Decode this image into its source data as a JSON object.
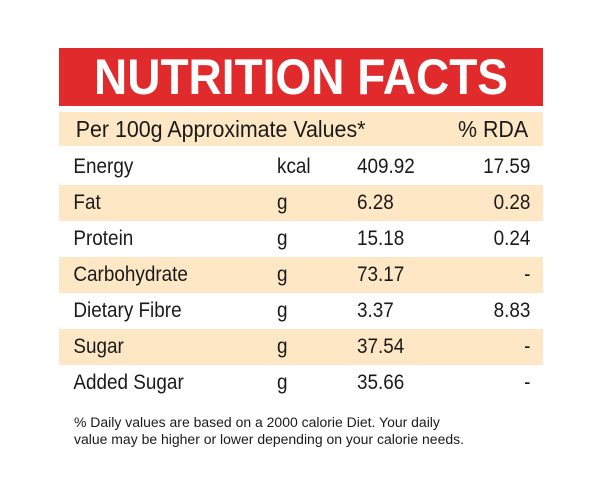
{
  "title": "NUTRITION FACTS",
  "header": {
    "left": "Per 100g Approximate Values*",
    "right": "% RDA"
  },
  "rows": [
    {
      "name": "Energy",
      "unit": "kcal",
      "value": "409.92",
      "rda": "17.59"
    },
    {
      "name": "Fat",
      "unit": "g",
      "value": "6.28",
      "rda": "0.28"
    },
    {
      "name": "Protein",
      "unit": "g",
      "value": "15.18",
      "rda": "0.24"
    },
    {
      "name": "Carbohydrate",
      "unit": "g",
      "value": "73.17",
      "rda": "-"
    },
    {
      "name": "Dietary Fibre",
      "unit": "g",
      "value": "3.37",
      "rda": "8.83"
    },
    {
      "name": "Sugar",
      "unit": "g",
      "value": "37.54",
      "rda": "-"
    },
    {
      "name": "Added Sugar",
      "unit": "g",
      "value": "35.66",
      "rda": "-"
    }
  ],
  "footnote": {
    "line1": "% Daily values are based on a 2000 calorie Diet. Your daily",
    "line2": "value may be higher or lower depending on your calorie needs."
  },
  "colors": {
    "title_bg": "#e02a2b",
    "shade": "#fde7c4",
    "text": "#1a1a1a"
  }
}
